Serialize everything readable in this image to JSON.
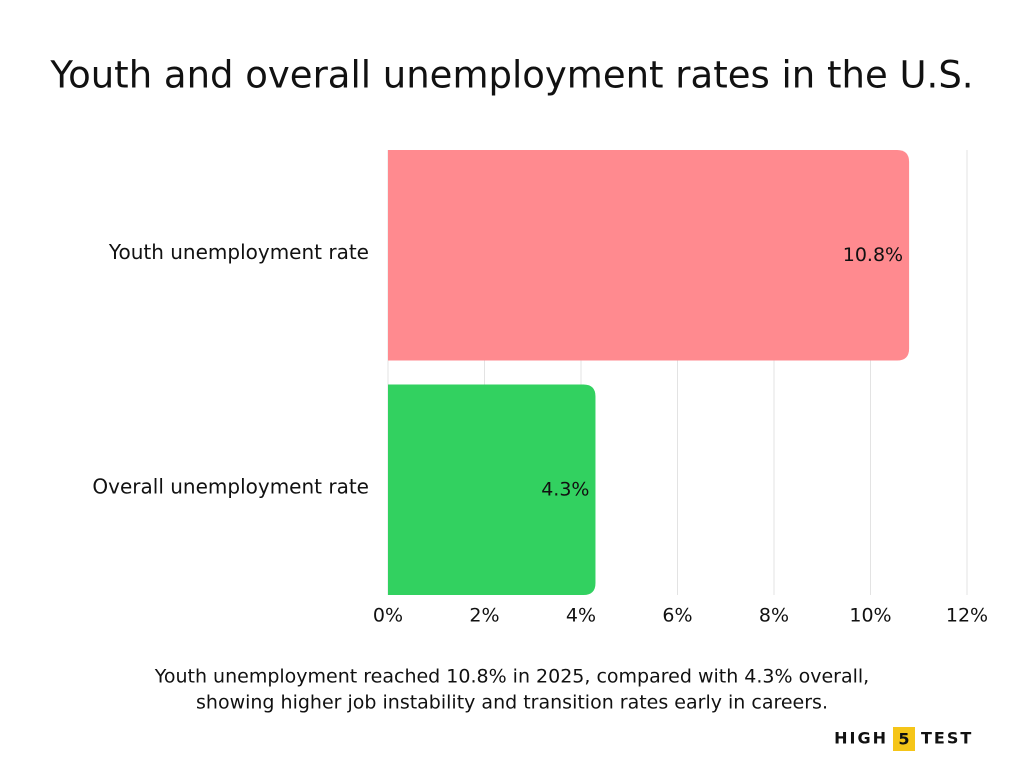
{
  "chart_data": {
    "type": "bar",
    "orientation": "horizontal",
    "title": "Youth and overall unemployment rates in the U.S.",
    "categories": [
      "Youth unemployment rate",
      "Overall unemployment rate"
    ],
    "values": [
      10.8,
      4.3
    ],
    "value_labels": [
      "10.8%",
      "4.3%"
    ],
    "colors": [
      "#ff8a8f",
      "#32d160"
    ],
    "xlim": [
      0,
      12
    ],
    "xticks": [
      {
        "value": 0,
        "label": "0%"
      },
      {
        "value": 2,
        "label": "2%"
      },
      {
        "value": 4,
        "label": "4%"
      },
      {
        "value": 6,
        "label": "6%"
      },
      {
        "value": 8,
        "label": "8%"
      },
      {
        "value": 10,
        "label": "10%"
      },
      {
        "value": 12,
        "label": "12%"
      }
    ],
    "grid": true,
    "caption": [
      "Youth unemployment reached 10.8% in 2025, compared with 4.3% overall,",
      "showing higher job instability and transition rates early in careers."
    ]
  },
  "logo": [
    "HIGH",
    "5",
    "TEST"
  ]
}
